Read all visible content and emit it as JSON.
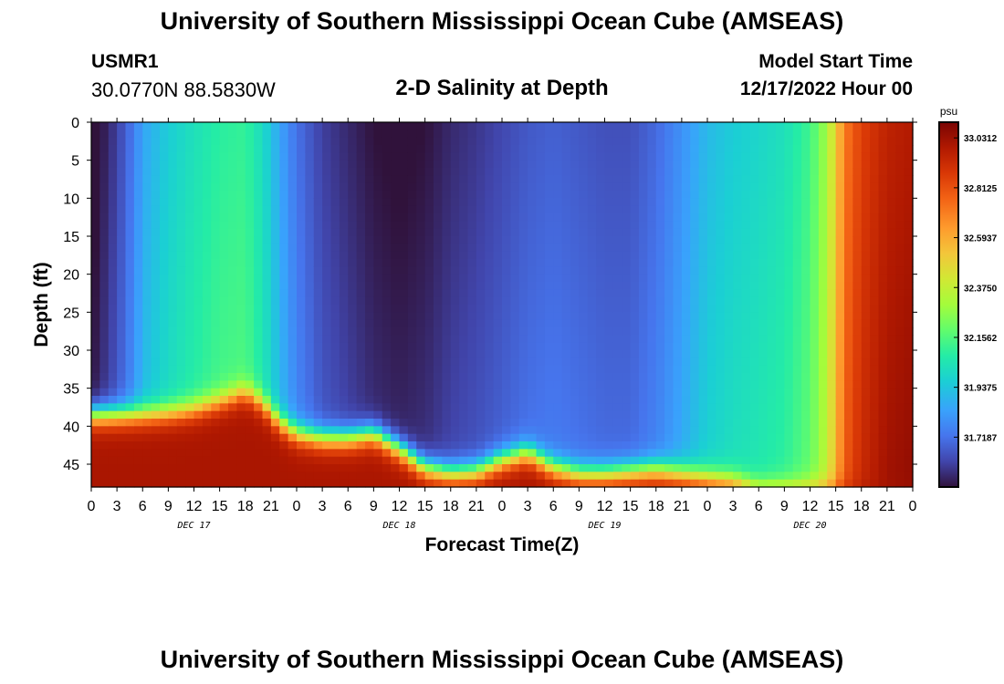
{
  "header": {
    "title": "University of Southern Mississippi Ocean Cube (AMSEAS)",
    "station_id": "USMR1",
    "station_coords": "30.0770N  88.5830W",
    "subtitle": "2-D Salinity at Depth",
    "model_start_label": "Model Start Time",
    "model_start_value": "12/17/2022 Hour 00"
  },
  "footer": {
    "title": "University of Southern Mississippi Ocean Cube (AMSEAS)"
  },
  "chart_data": {
    "type": "heatmap",
    "title": "2-D Salinity at Depth",
    "xlabel": "Forecast Time(Z)",
    "ylabel": "Depth (ft)",
    "x_hours_range": [
      0,
      96
    ],
    "x_tick_labels": [
      "0",
      "3",
      "6",
      "9",
      "12",
      "15",
      "18",
      "21",
      "0",
      "3",
      "6",
      "9",
      "12",
      "15",
      "18",
      "21",
      "0",
      "3",
      "6",
      "9",
      "12",
      "15",
      "18",
      "21",
      "0",
      "3",
      "6",
      "9",
      "12",
      "15",
      "18",
      "21",
      "0"
    ],
    "day_labels": [
      {
        "label": "DEC 17",
        "hour": 12
      },
      {
        "label": "DEC 18",
        "hour": 36
      },
      {
        "label": "DEC 19",
        "hour": 60
      },
      {
        "label": "DEC 20",
        "hour": 84
      }
    ],
    "y_ticks": [
      0,
      5,
      10,
      15,
      20,
      25,
      30,
      35,
      40,
      45
    ],
    "ylim": [
      0,
      48
    ],
    "colorbar": {
      "unit": "psu",
      "range": [
        31.5,
        33.1
      ],
      "labels": [
        "33.0312",
        "32.8125",
        "32.5937",
        "32.3750",
        "32.1562",
        "31.9375",
        "31.7187"
      ],
      "label_values": [
        33.0312,
        32.8125,
        32.5937,
        32.375,
        32.1562,
        31.9375,
        31.7187
      ]
    },
    "surface_salinity": {
      "hours": [
        0,
        2,
        3,
        5,
        6,
        9,
        12,
        15,
        18,
        20,
        22,
        24,
        27,
        30,
        33,
        36,
        39,
        42,
        45,
        48,
        51,
        54,
        57,
        60,
        63,
        66,
        69,
        72,
        75,
        78,
        81,
        84,
        86,
        87,
        88,
        90,
        93,
        96
      ],
      "values": [
        31.45,
        31.55,
        31.6,
        31.75,
        31.85,
        31.95,
        32.02,
        32.08,
        32.1,
        32.0,
        31.85,
        31.72,
        31.6,
        31.55,
        31.5,
        31.48,
        31.5,
        31.55,
        31.58,
        31.62,
        31.66,
        31.68,
        31.66,
        31.64,
        31.64,
        31.7,
        31.8,
        31.9,
        31.95,
        31.98,
        32.02,
        32.12,
        32.3,
        32.5,
        32.7,
        32.85,
        32.95,
        32.98
      ]
    },
    "halocline_depth_ft": {
      "hours": [
        0,
        3,
        6,
        9,
        12,
        15,
        18,
        20,
        22,
        24,
        27,
        30,
        33,
        36,
        39,
        42,
        45,
        48,
        51,
        54,
        57,
        60,
        63,
        66,
        69,
        72,
        75,
        78,
        81,
        84,
        87,
        90,
        93,
        96
      ],
      "values": [
        38.5,
        38.5,
        38.5,
        38.3,
        37.8,
        36.8,
        35.5,
        37.0,
        39.5,
        41.0,
        41.6,
        41.6,
        41.0,
        43.0,
        45.5,
        46.2,
        46.0,
        44.5,
        43.5,
        45.5,
        46.3,
        46.3,
        46.0,
        45.8,
        46.3,
        46.8,
        47.3,
        48.5,
        48.5,
        48.5,
        48.5,
        48.5,
        48.5,
        48.5
      ]
    }
  }
}
